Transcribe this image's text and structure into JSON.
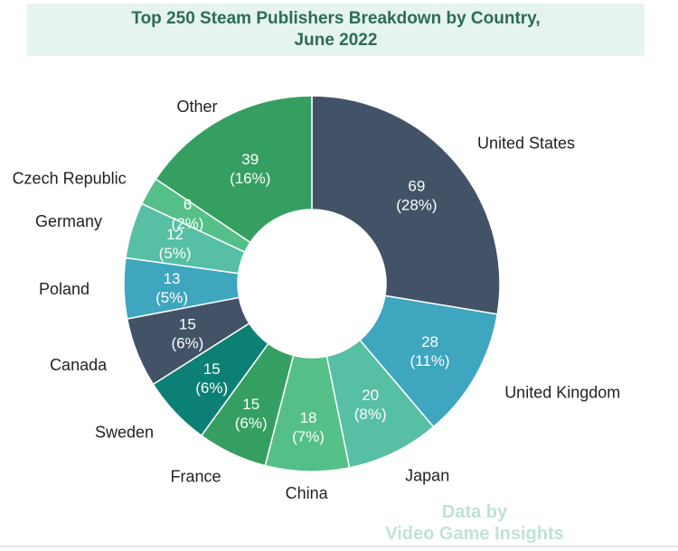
{
  "chart_data": {
    "type": "pie",
    "donut": true,
    "title_lines": [
      "Top 250 Steam Publishers Breakdown by Country,",
      "June 2022"
    ],
    "slices": [
      {
        "label": "United States",
        "value": 69,
        "pct": "28%",
        "color": "#435367"
      },
      {
        "label": "United Kingdom",
        "value": 28,
        "pct": "11%",
        "color": "#3ea6bf"
      },
      {
        "label": "Japan",
        "value": 20,
        "pct": "8%",
        "color": "#57bfa4"
      },
      {
        "label": "China",
        "value": 18,
        "pct": "7%",
        "color": "#55bf88"
      },
      {
        "label": "France",
        "value": 15,
        "pct": "6%",
        "color": "#359f62"
      },
      {
        "label": "Sweden",
        "value": 15,
        "pct": "6%",
        "color": "#0d8075"
      },
      {
        "label": "Canada",
        "value": 15,
        "pct": "6%",
        "color": "#435367"
      },
      {
        "label": "Poland",
        "value": 13,
        "pct": "5%",
        "color": "#3ea6bf"
      },
      {
        "label": "Germany",
        "value": 12,
        "pct": "5%",
        "color": "#57bfa4"
      },
      {
        "label": "Czech Republic",
        "value": 6,
        "pct": "2%",
        "color": "#55bf88"
      },
      {
        "label": "Other",
        "value": 39,
        "pct": "16%",
        "color": "#359f62"
      }
    ],
    "value_labels": [
      {
        "value": "69",
        "pct": "(28%)"
      },
      {
        "value": "28",
        "pct": "(11%)"
      },
      {
        "value": "20",
        "pct": "(8%)"
      },
      {
        "value": "18",
        "pct": "(7%)"
      },
      {
        "value": "15",
        "pct": "(6%)"
      },
      {
        "value": "15",
        "pct": "(6%)"
      },
      {
        "value": "15",
        "pct": "(6%)"
      },
      {
        "value": "13",
        "pct": "(5%)"
      },
      {
        "value": "12",
        "pct": "(5%)"
      },
      {
        "value": "6",
        "pct": "(2%)"
      },
      {
        "value": "39",
        "pct": "(16%)"
      }
    ]
  },
  "watermark": {
    "line1": "Data by",
    "line2": "Video Game Insights"
  }
}
